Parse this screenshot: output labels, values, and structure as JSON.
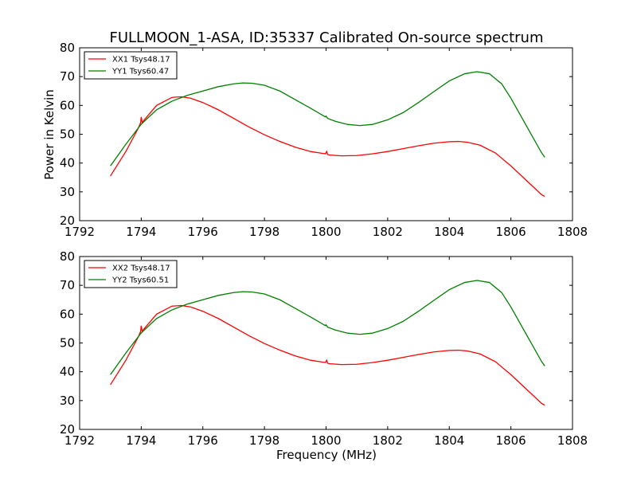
{
  "figure": {
    "title": "FULLMOON_1-ASA, ID:35337 Calibrated On-source spectrum",
    "xlabel": "Frequency (MHz)"
  },
  "chart_data": [
    {
      "type": "line",
      "title": "FULLMOON_1-ASA, ID:35337 Calibrated On-source spectrum",
      "xlabel": "",
      "ylabel": "Power in Kelvin",
      "xlim": [
        1792,
        1808
      ],
      "ylim": [
        20,
        80
      ],
      "xticks": [
        "1792",
        "1794",
        "1796",
        "1798",
        "1800",
        "1802",
        "1804",
        "1806",
        "1808"
      ],
      "yticks": [
        "20",
        "30",
        "40",
        "50",
        "60",
        "70",
        "80"
      ],
      "grid": false,
      "legend_position": "top-left",
      "series": [
        {
          "name": "XX1 Tsys48.17",
          "color": "#ff0000",
          "x": [
            1793.0,
            1793.5,
            1793.9,
            1793.98,
            1794.0,
            1794.03,
            1794.1,
            1794.5,
            1795.0,
            1795.3,
            1795.6,
            1796.0,
            1796.5,
            1797.0,
            1797.5,
            1798.0,
            1798.5,
            1799.0,
            1799.5,
            1799.98,
            1800.02,
            1800.05,
            1800.1,
            1800.5,
            1801.0,
            1801.5,
            1802.0,
            1802.5,
            1803.0,
            1803.5,
            1804.0,
            1804.3,
            1804.6,
            1805.0,
            1805.5,
            1806.0,
            1806.5,
            1807.0,
            1807.1
          ],
          "values": [
            35.5,
            44.0,
            52.0,
            54.0,
            56.0,
            54.0,
            55.0,
            60.0,
            62.8,
            63.0,
            62.5,
            61.0,
            58.5,
            55.5,
            52.5,
            49.8,
            47.5,
            45.5,
            44.0,
            43.2,
            44.0,
            43.0,
            42.8,
            42.5,
            42.6,
            43.2,
            44.0,
            45.0,
            46.0,
            46.9,
            47.4,
            47.5,
            47.2,
            46.2,
            43.5,
            39.0,
            34.0,
            29.0,
            28.4
          ]
        },
        {
          "name": "YY1 Tsys60.47",
          "color": "#008000",
          "x": [
            1793.0,
            1793.5,
            1794.0,
            1794.5,
            1795.0,
            1795.5,
            1796.0,
            1796.5,
            1797.0,
            1797.3,
            1797.6,
            1798.0,
            1798.5,
            1799.0,
            1799.5,
            1799.98,
            1800.0,
            1800.05,
            1800.3,
            1800.7,
            1801.1,
            1801.5,
            1802.0,
            1802.5,
            1803.0,
            1803.5,
            1804.0,
            1804.5,
            1804.9,
            1805.3,
            1805.7,
            1806.0,
            1806.5,
            1807.0,
            1807.1
          ],
          "values": [
            39.0,
            46.5,
            53.5,
            58.5,
            61.5,
            63.5,
            65.0,
            66.5,
            67.5,
            67.8,
            67.7,
            67.0,
            65.0,
            62.0,
            59.0,
            56.0,
            56.3,
            55.5,
            54.5,
            53.4,
            53.0,
            53.4,
            55.0,
            57.5,
            61.0,
            64.8,
            68.5,
            71.0,
            71.7,
            71.0,
            67.5,
            62.5,
            53.0,
            43.5,
            42.0
          ]
        }
      ]
    },
    {
      "type": "line",
      "title": "",
      "xlabel": "Frequency (MHz)",
      "ylabel": "",
      "xlim": [
        1792,
        1808
      ],
      "ylim": [
        20,
        80
      ],
      "xticks": [
        "1792",
        "1794",
        "1796",
        "1798",
        "1800",
        "1802",
        "1804",
        "1806",
        "1808"
      ],
      "yticks": [
        "20",
        "30",
        "40",
        "50",
        "60",
        "70",
        "80"
      ],
      "grid": false,
      "legend_position": "top-left",
      "series": [
        {
          "name": "XX2 Tsys48.17",
          "color": "#ff0000",
          "x": [
            1793.0,
            1793.5,
            1793.9,
            1793.98,
            1794.0,
            1794.03,
            1794.1,
            1794.5,
            1795.0,
            1795.3,
            1795.6,
            1796.0,
            1796.5,
            1797.0,
            1797.5,
            1798.0,
            1798.5,
            1799.0,
            1799.5,
            1799.98,
            1800.02,
            1800.05,
            1800.1,
            1800.5,
            1801.0,
            1801.5,
            1802.0,
            1802.5,
            1803.0,
            1803.5,
            1804.0,
            1804.3,
            1804.6,
            1805.0,
            1805.5,
            1806.0,
            1806.5,
            1807.0,
            1807.1
          ],
          "values": [
            35.5,
            44.0,
            52.0,
            54.0,
            56.0,
            54.0,
            55.0,
            60.0,
            62.8,
            63.0,
            62.5,
            61.0,
            58.5,
            55.5,
            52.5,
            49.8,
            47.5,
            45.5,
            44.0,
            43.2,
            44.0,
            43.0,
            42.8,
            42.5,
            42.6,
            43.2,
            44.0,
            45.0,
            46.0,
            46.9,
            47.4,
            47.5,
            47.2,
            46.2,
            43.5,
            39.0,
            34.0,
            29.0,
            28.4
          ]
        },
        {
          "name": "YY2 Tsys60.51",
          "color": "#008000",
          "x": [
            1793.0,
            1793.5,
            1794.0,
            1794.5,
            1795.0,
            1795.5,
            1796.0,
            1796.5,
            1797.0,
            1797.3,
            1797.6,
            1798.0,
            1798.5,
            1799.0,
            1799.5,
            1799.98,
            1800.0,
            1800.05,
            1800.3,
            1800.7,
            1801.1,
            1801.5,
            1802.0,
            1802.5,
            1803.0,
            1803.5,
            1804.0,
            1804.5,
            1804.9,
            1805.3,
            1805.7,
            1806.0,
            1806.5,
            1807.0,
            1807.1
          ],
          "values": [
            39.0,
            46.5,
            53.5,
            58.5,
            61.5,
            63.5,
            65.0,
            66.5,
            67.5,
            67.8,
            67.7,
            67.0,
            65.0,
            62.0,
            59.0,
            56.0,
            56.3,
            55.5,
            54.5,
            53.4,
            53.0,
            53.4,
            55.0,
            57.5,
            61.0,
            64.8,
            68.5,
            71.0,
            71.7,
            71.0,
            67.5,
            62.5,
            53.0,
            43.5,
            42.0
          ]
        }
      ]
    }
  ]
}
